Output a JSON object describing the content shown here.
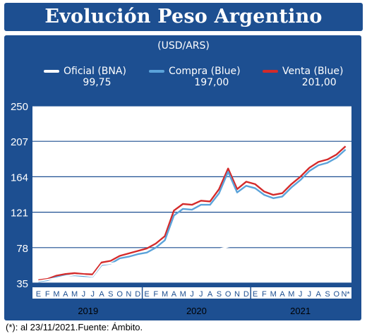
{
  "header": {
    "title": "Evolución Peso Argentino"
  },
  "chart_data": {
    "type": "line",
    "unit_label": "(USD/ARS)",
    "yticks": [
      "250",
      "207",
      "164",
      "121",
      "78",
      "35"
    ],
    "ylim": [
      35,
      250
    ],
    "month_labels": [
      "E",
      "F",
      "M",
      "A",
      "M",
      "J",
      "J",
      "A",
      "S",
      "O",
      "N",
      "D",
      "E",
      "F",
      "M",
      "A",
      "M",
      "J",
      "J",
      "A",
      "S",
      "O",
      "N",
      "D",
      "E",
      "F",
      "M",
      "A",
      "M",
      "J",
      "J",
      "A",
      "S",
      "O",
      "N*"
    ],
    "year_labels": [
      "2019",
      "2020",
      "2021"
    ],
    "series": [
      {
        "name": "Oficial (BNA)",
        "latest": "99,75",
        "color": "#ffffff",
        "values": [
          37.5,
          39.2,
          41.0,
          43.5,
          45.0,
          44.4,
          43.1,
          57.8,
          58.6,
          60.5,
          62.6,
          62.9,
          63.0,
          64.3,
          65.5,
          67.2,
          69.2,
          70.5,
          72.4,
          74.1,
          76.2,
          79.0,
          81.6,
          84.2,
          87.8,
          90.6,
          92.2,
          94.2,
          95.0,
          95.9,
          96.6,
          97.3,
          98.2,
          99.2,
          99.75
        ]
      },
      {
        "name": "Compra (Blue)",
        "latest": "197,00",
        "color": "#5ba3da",
        "values": [
          37.0,
          38.5,
          42.0,
          44.0,
          44.5,
          43.5,
          43.0,
          57.0,
          58.5,
          65.0,
          67.0,
          70.0,
          72.0,
          78.0,
          87.0,
          117.0,
          125.0,
          124.0,
          130.0,
          130.0,
          144.0,
          170.0,
          145.0,
          153.0,
          150.0,
          142.0,
          138.0,
          140.0,
          151.0,
          160.0,
          171.0,
          178.0,
          181.0,
          187.0,
          197.0
        ]
      },
      {
        "name": "Venta (Blue)",
        "latest": "201,00",
        "color": "#d42a2a",
        "values": [
          38.5,
          40.0,
          44.0,
          46.0,
          47.0,
          46.0,
          45.5,
          60.0,
          62.0,
          68.0,
          71.0,
          74.0,
          77.0,
          83.0,
          92.0,
          123.0,
          131.0,
          130.0,
          135.0,
          134.0,
          149.0,
          174.0,
          149.0,
          158.0,
          155.0,
          146.0,
          142.0,
          144.0,
          155.0,
          164.0,
          175.0,
          182.0,
          185.0,
          191.0,
          201.0
        ]
      }
    ]
  },
  "footnote": "(*): al 23/11/2021.Fuente: Ámbito."
}
